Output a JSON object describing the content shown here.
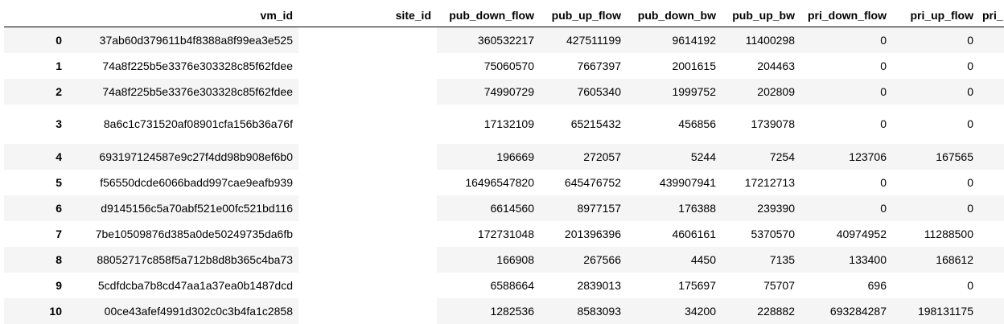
{
  "table": {
    "index_header": "",
    "columns": [
      "vm_id",
      "site_id",
      "pub_down_flow",
      "pub_up_flow",
      "pub_down_bw",
      "pub_up_bw",
      "pri_down_flow",
      "pri_up_flow",
      "pri_"
    ],
    "rows": [
      {
        "index": "0",
        "vm_id": "37ab60d379611b4f8388a8f99ea3e525",
        "site_id": "",
        "pub_down_flow": "360532217",
        "pub_up_flow": "427511199",
        "pub_down_bw": "9614192",
        "pub_up_bw": "11400298",
        "pri_down_flow": "0",
        "pri_up_flow": "0"
      },
      {
        "index": "1",
        "vm_id": "74a8f225b5e3376e303328c85f62fdee",
        "site_id": "",
        "pub_down_flow": "75060570",
        "pub_up_flow": "7667397",
        "pub_down_bw": "2001615",
        "pub_up_bw": "204463",
        "pri_down_flow": "0",
        "pri_up_flow": "0"
      },
      {
        "index": "2",
        "vm_id": "74a8f225b5e3376e303328c85f62fdee",
        "site_id": "",
        "pub_down_flow": "74990729",
        "pub_up_flow": "7605340",
        "pub_down_bw": "1999752",
        "pub_up_bw": "202809",
        "pri_down_flow": "0",
        "pri_up_flow": "0"
      },
      {
        "index": "3",
        "vm_id": "8a6c1c731520af08901cfa156b36a76f",
        "site_id": "",
        "pub_down_flow": "17132109",
        "pub_up_flow": "65215432",
        "pub_down_bw": "456856",
        "pub_up_bw": "1739078",
        "pri_down_flow": "0",
        "pri_up_flow": "0"
      },
      {
        "index": "4",
        "vm_id": "693197124587e9c27f4dd98b908ef6b0",
        "site_id": "",
        "pub_down_flow": "196669",
        "pub_up_flow": "272057",
        "pub_down_bw": "5244",
        "pub_up_bw": "7254",
        "pri_down_flow": "123706",
        "pri_up_flow": "167565"
      },
      {
        "index": "5",
        "vm_id": "f56550dcde6066badd997cae9eafb939",
        "site_id": "",
        "pub_down_flow": "16496547820",
        "pub_up_flow": "645476752",
        "pub_down_bw": "439907941",
        "pub_up_bw": "17212713",
        "pri_down_flow": "0",
        "pri_up_flow": "0"
      },
      {
        "index": "6",
        "vm_id": "d9145156c5a70abf521e00fc521bd116",
        "site_id": "",
        "pub_down_flow": "6614560",
        "pub_up_flow": "8977157",
        "pub_down_bw": "176388",
        "pub_up_bw": "239390",
        "pri_down_flow": "0",
        "pri_up_flow": "0"
      },
      {
        "index": "7",
        "vm_id": "7be10509876d385a0de50249735da6fb",
        "site_id": "",
        "pub_down_flow": "172731048",
        "pub_up_flow": "201396396",
        "pub_down_bw": "4606161",
        "pub_up_bw": "5370570",
        "pri_down_flow": "40974952",
        "pri_up_flow": "11288500"
      },
      {
        "index": "8",
        "vm_id": "88052717c858f5a712b8d8b365c4ba73",
        "site_id": "",
        "pub_down_flow": "166908",
        "pub_up_flow": "267566",
        "pub_down_bw": "4450",
        "pub_up_bw": "7135",
        "pri_down_flow": "133400",
        "pri_up_flow": "168612"
      },
      {
        "index": "9",
        "vm_id": "5cdfdcba7b8cd47aa1a37ea0b1487dcd",
        "site_id": "",
        "pub_down_flow": "6588664",
        "pub_up_flow": "2839013",
        "pub_down_bw": "175697",
        "pub_up_bw": "75707",
        "pri_down_flow": "696",
        "pri_up_flow": "0"
      },
      {
        "index": "10",
        "vm_id": "00ce43afef4991d302c0c3b4fa1c2858",
        "site_id": "",
        "pub_down_flow": "1282536",
        "pub_up_flow": "8583093",
        "pub_down_bw": "34200",
        "pub_up_bw": "228882",
        "pri_down_flow": "693284287",
        "pri_up_flow": "198131175"
      }
    ]
  }
}
